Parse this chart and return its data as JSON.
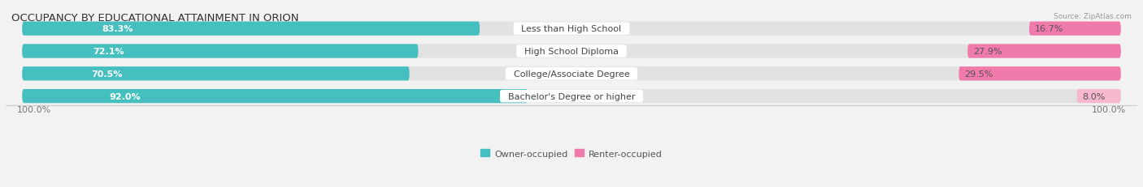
{
  "title": "OCCUPANCY BY EDUCATIONAL ATTAINMENT IN ORION",
  "source": "Source: ZipAtlas.com",
  "categories": [
    "Less than High School",
    "High School Diploma",
    "College/Associate Degree",
    "Bachelor's Degree or higher"
  ],
  "owner_pct": [
    83.3,
    72.1,
    70.5,
    92.0
  ],
  "renter_pct": [
    16.7,
    27.9,
    29.5,
    8.0
  ],
  "owner_color": "#45bfbf",
  "renter_color": "#f07aaa",
  "renter_color_light": "#f7b8cf",
  "bg_color": "#f2f2f2",
  "bar_bg_color": "#e2e2e2",
  "title_fontsize": 9.5,
  "bar_label_fontsize": 8,
  "cat_label_fontsize": 8,
  "axis_label_fontsize": 8,
  "legend_fontsize": 8,
  "x_left_label": "100.0%",
  "x_right_label": "100.0%"
}
